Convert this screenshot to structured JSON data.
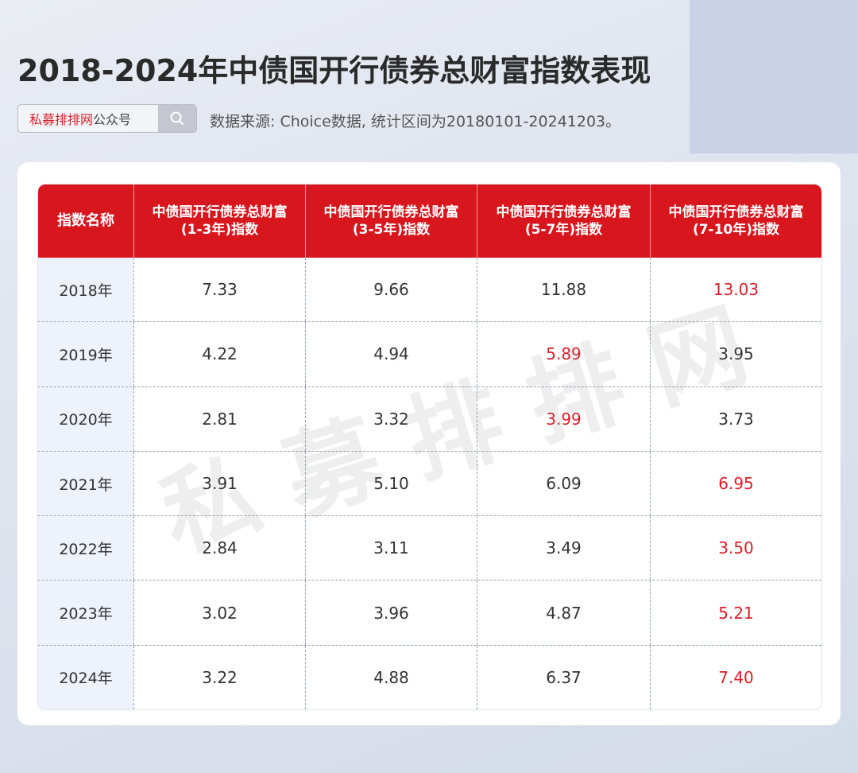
{
  "title": "2018-2024年中债国开行债券总财富指数表现",
  "search": {
    "brand": "私募排排网",
    "suffix": "公众号",
    "icon": "search-icon"
  },
  "source": "数据来源: Choice数据, 统计区间为20180101-20241203。",
  "watermark": "私募排排网",
  "colors": {
    "accent": "#d8161e",
    "highlight": "#d8202a"
  },
  "table": {
    "headers": [
      {
        "line1": "指数名称",
        "line2": ""
      },
      {
        "line1": "中债国开行债券总财富",
        "line2": "(1-3年)指数"
      },
      {
        "line1": "中债国开行债券总财富",
        "line2": "(3-5年)指数"
      },
      {
        "line1": "中债国开行债券总财富",
        "line2": "(5-7年)指数"
      },
      {
        "line1": "中债国开行债券总财富",
        "line2": "(7-10年)指数"
      }
    ],
    "rows": [
      {
        "year": "2018年",
        "values": [
          "7.33",
          "9.66",
          "11.88",
          "13.03"
        ],
        "highlight": [
          false,
          false,
          false,
          true
        ]
      },
      {
        "year": "2019年",
        "values": [
          "4.22",
          "4.94",
          "5.89",
          "3.95"
        ],
        "highlight": [
          false,
          false,
          true,
          false
        ]
      },
      {
        "year": "2020年",
        "values": [
          "2.81",
          "3.32",
          "3.99",
          "3.73"
        ],
        "highlight": [
          false,
          false,
          true,
          false
        ]
      },
      {
        "year": "2021年",
        "values": [
          "3.91",
          "5.10",
          "6.09",
          "6.95"
        ],
        "highlight": [
          false,
          false,
          false,
          true
        ]
      },
      {
        "year": "2022年",
        "values": [
          "2.84",
          "3.11",
          "3.49",
          "3.50"
        ],
        "highlight": [
          false,
          false,
          false,
          true
        ]
      },
      {
        "year": "2023年",
        "values": [
          "3.02",
          "3.96",
          "4.87",
          "5.21"
        ],
        "highlight": [
          false,
          false,
          false,
          true
        ]
      },
      {
        "year": "2024年",
        "values": [
          "3.22",
          "4.88",
          "6.37",
          "7.40"
        ],
        "highlight": [
          false,
          false,
          false,
          true
        ]
      }
    ]
  }
}
